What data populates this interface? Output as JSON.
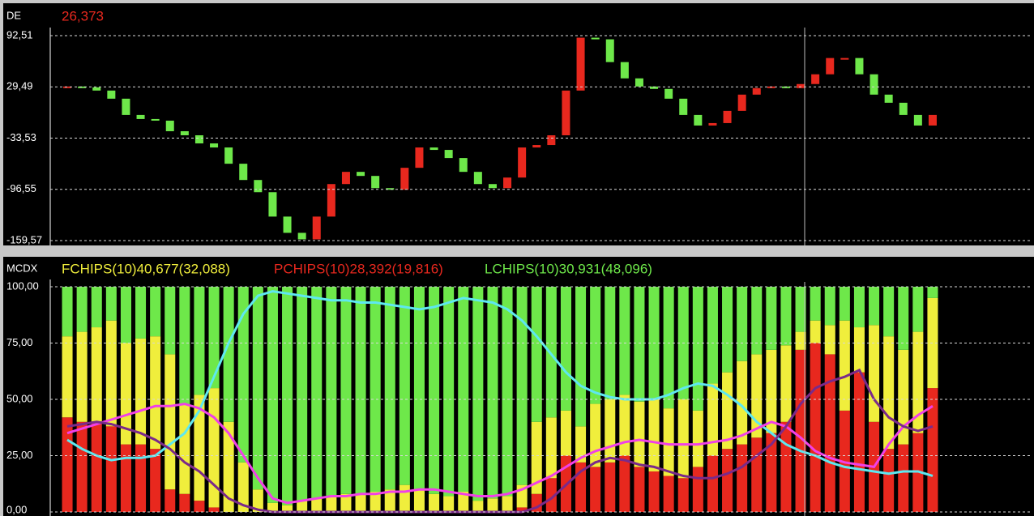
{
  "chart_data": [
    {
      "type": "candlestick",
      "title": "DE",
      "subtitle": "26,373",
      "open": [
        28,
        30,
        29,
        25,
        15,
        -5,
        -10,
        -12,
        -25,
        -30,
        -40,
        -45,
        -65,
        -85,
        -100,
        -130,
        -150,
        -158,
        -130,
        -90,
        -75,
        -80,
        -95,
        -97,
        -70,
        -45,
        -48,
        -58,
        -75,
        -90,
        -95,
        -82,
        -45,
        -42,
        -30,
        25,
        90,
        88,
        60,
        40,
        30,
        27,
        15,
        -5,
        -18,
        -15,
        0,
        20,
        28,
        30,
        28,
        33,
        45,
        65,
        65,
        45,
        20,
        10,
        -5,
        -18
      ],
      "close": [
        30,
        29,
        25,
        15,
        -5,
        -10,
        -12,
        -25,
        -30,
        -40,
        -45,
        -65,
        -85,
        -100,
        -130,
        -150,
        -158,
        -130,
        -90,
        -75,
        -80,
        -95,
        -97,
        -70,
        -45,
        -48,
        -58,
        -75,
        -90,
        -95,
        -82,
        -45,
        -42,
        -30,
        25,
        90,
        88,
        60,
        40,
        30,
        27,
        15,
        -5,
        -18,
        -15,
        0,
        20,
        28,
        30,
        28,
        33,
        45,
        65,
        65,
        45,
        20,
        10,
        -5,
        -18,
        -5
      ],
      "up_color": "#e8281e",
      "down_color": "#6ee84a",
      "ylim": [
        -164.5,
        102.5
      ],
      "yticks": [
        {
          "value": 92.51,
          "label": "92,51"
        },
        {
          "value": 29.49,
          "label": "29,49"
        },
        {
          "value": -33.53,
          "label": "-33,53"
        },
        {
          "value": -96.55,
          "label": "-96,55"
        },
        {
          "value": -159.57,
          "label": "-159,57"
        }
      ],
      "grid": true
    },
    {
      "type": "stacked_bar",
      "title": "MCDX",
      "series": [
        {
          "name": "PCHIPS(10)28,392(19,816)",
          "color": "#e8281e",
          "values": [
            42,
            40,
            40,
            38,
            30,
            30,
            28,
            10,
            8,
            5,
            2,
            0,
            0,
            0,
            0,
            0,
            0,
            0,
            0,
            0,
            0,
            0,
            0,
            0,
            0,
            0,
            0,
            0,
            0,
            0,
            0,
            2,
            8,
            15,
            25,
            22,
            20,
            22,
            25,
            20,
            18,
            16,
            15,
            20,
            25,
            28,
            30,
            33,
            35,
            40,
            72,
            75,
            70,
            45,
            62,
            40,
            28,
            30,
            35,
            55
          ]
        },
        {
          "name": "FCHIPS(10)40,677(32,088)",
          "color": "#f0ee3c",
          "values": [
            36,
            40,
            42,
            47,
            45,
            47,
            50,
            60,
            40,
            47,
            53,
            40,
            22,
            10,
            4,
            3,
            5,
            6,
            7,
            8,
            8,
            9,
            10,
            12,
            10,
            8,
            7,
            9,
            5,
            6,
            7,
            10,
            32,
            27,
            20,
            16,
            28,
            28,
            27,
            29,
            32,
            30,
            35,
            25,
            32,
            34,
            37,
            37,
            37,
            34,
            8,
            10,
            13,
            40,
            20,
            43,
            50,
            42,
            45,
            40
          ]
        },
        {
          "name": "LCHIPS(10)30,931(48,096)",
          "color": "#6ee84a",
          "values": [
            22,
            20,
            18,
            15,
            25,
            23,
            22,
            30,
            52,
            48,
            45,
            60,
            78,
            90,
            96,
            97,
            95,
            94,
            93,
            92,
            92,
            91,
            90,
            88,
            90,
            92,
            93,
            91,
            95,
            94,
            93,
            88,
            60,
            58,
            55,
            62,
            52,
            50,
            48,
            51,
            50,
            54,
            50,
            55,
            43,
            38,
            33,
            30,
            28,
            26,
            20,
            15,
            17,
            15,
            18,
            17,
            22,
            28,
            20,
            5
          ]
        }
      ],
      "lines": [
        {
          "color": "#5ee8f0",
          "values": [
            32,
            28,
            25,
            23,
            24,
            24,
            25,
            30,
            35,
            45,
            60,
            75,
            88,
            96,
            98,
            97,
            96,
            95,
            94,
            94,
            93,
            93,
            92,
            91,
            90,
            91,
            93,
            95,
            94,
            93,
            90,
            85,
            78,
            70,
            62,
            56,
            53,
            51,
            50,
            50,
            50,
            52,
            55,
            57,
            56,
            52,
            47,
            40,
            35,
            30,
            27,
            25,
            22,
            20,
            19,
            18,
            17,
            18,
            18,
            16
          ]
        },
        {
          "color": "#f040e8",
          "values": [
            35,
            37,
            39,
            41,
            43,
            45,
            47,
            47,
            48,
            46,
            42,
            35,
            25,
            15,
            6,
            4,
            5,
            6,
            7,
            7,
            8,
            8,
            9,
            9,
            10,
            10,
            9,
            8,
            7,
            7,
            8,
            10,
            13,
            16,
            20,
            24,
            27,
            29,
            31,
            32,
            31,
            30,
            30,
            30,
            31,
            32,
            34,
            37,
            40,
            38,
            33,
            27,
            24,
            22,
            21,
            20,
            30,
            38,
            43,
            47
          ]
        },
        {
          "color": "#7a2a8a",
          "values": [
            38,
            39,
            40,
            39,
            37,
            35,
            32,
            28,
            22,
            18,
            12,
            6,
            3,
            1,
            0,
            0,
            0,
            0,
            0,
            0,
            0,
            0,
            0,
            0,
            0,
            0,
            0,
            0,
            0,
            0,
            0,
            0,
            2,
            6,
            12,
            18,
            22,
            24,
            23,
            21,
            20,
            18,
            16,
            15,
            15,
            17,
            20,
            25,
            30,
            38,
            48,
            55,
            58,
            60,
            63,
            50,
            42,
            38,
            36,
            38
          ]
        }
      ],
      "ylim": [
        0,
        100
      ],
      "yticks": [
        {
          "value": 100,
          "label": "100,00"
        },
        {
          "value": 75,
          "label": "75,00"
        },
        {
          "value": 50,
          "label": "50,00"
        },
        {
          "value": 25,
          "label": "25,00"
        },
        {
          "value": 0,
          "label": "0,00"
        }
      ],
      "grid": true
    }
  ]
}
